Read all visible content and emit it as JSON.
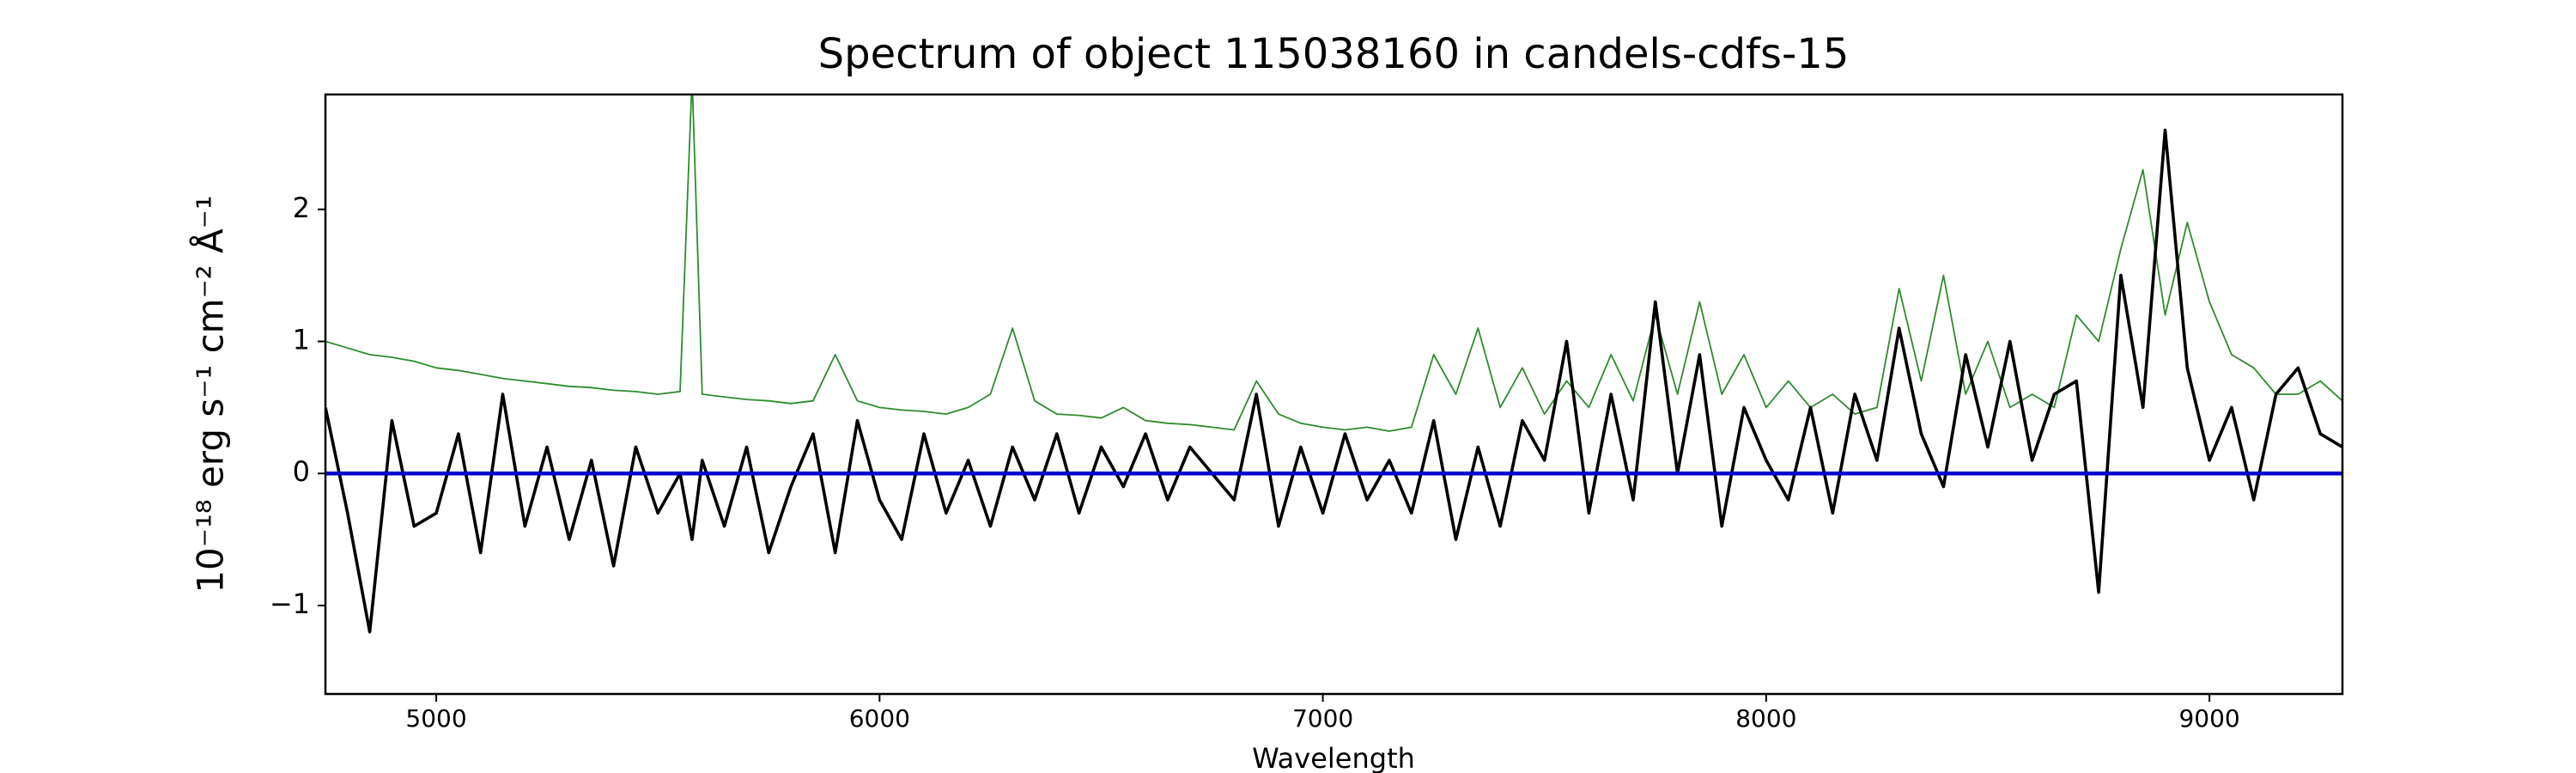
{
  "chart_data": {
    "type": "line",
    "title": "Spectrum of object 115038160 in candels-cdfs-15",
    "xlabel": "Wavelength",
    "ylabel": "10⁻¹⁸ erg s⁻¹ cm⁻² Å⁻¹",
    "x": [
      4750,
      4800,
      4850,
      4900,
      4950,
      5000,
      5050,
      5100,
      5150,
      5200,
      5250,
      5300,
      5350,
      5400,
      5450,
      5500,
      5550,
      5577,
      5600,
      5650,
      5700,
      5750,
      5800,
      5850,
      5900,
      5950,
      6000,
      6050,
      6100,
      6150,
      6200,
      6250,
      6300,
      6350,
      6400,
      6450,
      6500,
      6550,
      6600,
      6650,
      6700,
      6750,
      6800,
      6850,
      6900,
      6950,
      7000,
      7050,
      7100,
      7150,
      7200,
      7250,
      7300,
      7350,
      7400,
      7450,
      7500,
      7550,
      7600,
      7650,
      7700,
      7750,
      7800,
      7850,
      7900,
      7950,
      8000,
      8050,
      8100,
      8150,
      8200,
      8250,
      8300,
      8350,
      8400,
      8450,
      8500,
      8550,
      8600,
      8650,
      8700,
      8750,
      8800,
      8850,
      8900,
      8950,
      9000,
      9050,
      9100,
      9150,
      9200,
      9250,
      9300
    ],
    "series": [
      {
        "color": "#2e8b2e",
        "values": [
          1.0,
          0.95,
          0.9,
          0.88,
          0.85,
          0.8,
          0.78,
          0.75,
          0.72,
          0.7,
          0.68,
          0.66,
          0.65,
          0.63,
          0.62,
          0.6,
          0.62,
          3.0,
          0.6,
          0.58,
          0.56,
          0.55,
          0.53,
          0.55,
          0.9,
          0.55,
          0.5,
          0.48,
          0.47,
          0.45,
          0.5,
          0.6,
          1.1,
          0.55,
          0.45,
          0.44,
          0.42,
          0.5,
          0.4,
          0.38,
          0.37,
          0.35,
          0.33,
          0.7,
          0.45,
          0.38,
          0.35,
          0.33,
          0.35,
          0.32,
          0.35,
          0.9,
          0.6,
          1.1,
          0.5,
          0.8,
          0.45,
          0.7,
          0.5,
          0.9,
          0.55,
          1.2,
          0.6,
          1.3,
          0.6,
          0.9,
          0.5,
          0.7,
          0.5,
          0.6,
          0.45,
          0.5,
          1.4,
          0.7,
          1.5,
          0.6,
          1.0,
          0.5,
          0.6,
          0.5,
          1.2,
          1.0,
          1.7,
          2.3,
          1.2,
          1.9,
          1.3,
          0.9,
          0.8,
          0.6,
          0.6,
          0.7,
          0.55
        ]
      },
      {
        "color": "#000000",
        "values": [
          0.5,
          -0.3,
          -1.2,
          0.4,
          -0.4,
          -0.3,
          0.3,
          -0.6,
          0.6,
          -0.4,
          0.2,
          -0.5,
          0.1,
          -0.7,
          0.2,
          -0.3,
          0.0,
          -0.5,
          0.1,
          -0.4,
          0.2,
          -0.6,
          -0.1,
          0.3,
          -0.6,
          0.4,
          -0.2,
          -0.5,
          0.3,
          -0.3,
          0.1,
          -0.4,
          0.2,
          -0.2,
          0.3,
          -0.3,
          0.2,
          -0.1,
          0.3,
          -0.2,
          0.2,
          0.0,
          -0.2,
          0.6,
          -0.4,
          0.2,
          -0.3,
          0.3,
          -0.2,
          0.1,
          -0.3,
          0.4,
          -0.5,
          0.2,
          -0.4,
          0.4,
          0.1,
          1.0,
          -0.3,
          0.6,
          -0.2,
          1.3,
          0.0,
          0.9,
          -0.4,
          0.5,
          0.1,
          -0.2,
          0.5,
          -0.3,
          0.6,
          0.1,
          1.1,
          0.3,
          -0.1,
          0.9,
          0.2,
          1.0,
          0.1,
          0.6,
          0.7,
          -0.9,
          1.5,
          0.5,
          2.6,
          0.8,
          0.1,
          0.5,
          -0.2,
          0.6,
          0.8,
          0.3,
          0.2
        ]
      },
      {
        "color": "#0000cc",
        "x": [
          4750,
          9300
        ],
        "values": [
          0,
          0
        ]
      }
    ],
    "xlim": [
      4750,
      9300
    ],
    "ylim": [
      -1.67,
      2.87
    ],
    "xticks": [
      5000,
      6000,
      7000,
      8000,
      9000
    ],
    "yticks": [
      {
        "value": -1,
        "label": "−1"
      },
      0,
      1,
      2
    ]
  }
}
